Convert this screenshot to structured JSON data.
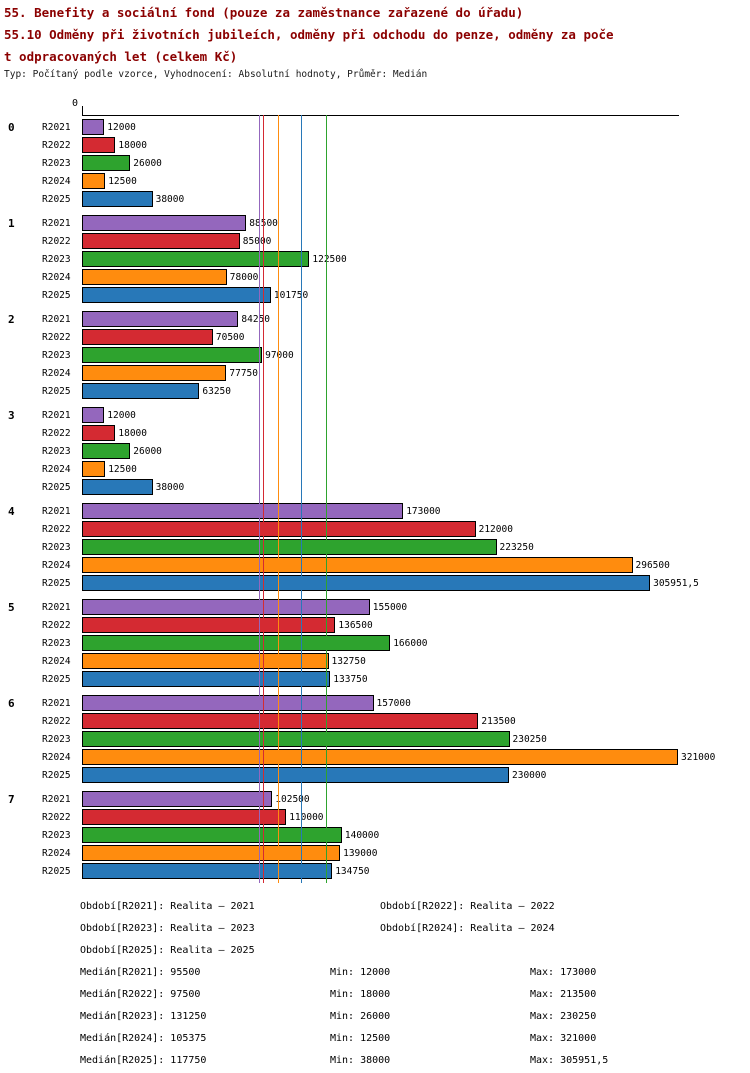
{
  "title_line1": "55. Benefity a sociální fond (pouze za zaměstnance zařazené do úřadu)",
  "title_line2": "55.10 Odměny při životních jubileích, odměny při odchodu do penze, odměny za poče",
  "title_line3": "t odpracovaných let (celkem Kč)",
  "subtitle": "Typ: Počítaný podle vzorce, Vyhodnocení: Absolutní hodnoty, Průměr: Medián",
  "chart_data": {
    "type": "bar",
    "orientation": "horizontal",
    "xlim": [
      0,
      321000
    ],
    "axis_origin_label": "0",
    "grid": false,
    "series": [
      {
        "name": "R2021",
        "color": "#9467BD",
        "median": 95500
      },
      {
        "name": "R2022",
        "color": "#D42A32",
        "median": 97500
      },
      {
        "name": "R2023",
        "color": "#2EA32E",
        "median": 131250
      },
      {
        "name": "R2024",
        "color": "#FF8C0E",
        "median": 105375
      },
      {
        "name": "R2025",
        "color": "#2878B8",
        "median": 117750
      }
    ],
    "groups": [
      {
        "label": "0",
        "values": [
          12000,
          18000,
          26000,
          12500,
          38000
        ],
        "value_labels": [
          "12000",
          "18000",
          "26000",
          "12500",
          "38000"
        ]
      },
      {
        "label": "1",
        "values": [
          88500,
          85000,
          122500,
          78000,
          101750
        ],
        "value_labels": [
          "88500",
          "85000",
          "122500",
          "78000",
          "101750"
        ]
      },
      {
        "label": "2",
        "values": [
          84250,
          70500,
          97000,
          77750,
          63250
        ],
        "value_labels": [
          "84250",
          "70500",
          "97000",
          "77750",
          "63250"
        ]
      },
      {
        "label": "3",
        "values": [
          12000,
          18000,
          26000,
          12500,
          38000
        ],
        "value_labels": [
          "12000",
          "18000",
          "26000",
          "12500",
          "38000"
        ]
      },
      {
        "label": "4",
        "values": [
          173000,
          212000,
          223250,
          296500,
          305951.5
        ],
        "value_labels": [
          "173000",
          "212000",
          "223250",
          "296500",
          "305951,5"
        ]
      },
      {
        "label": "5",
        "values": [
          155000,
          136500,
          166000,
          132750,
          133750
        ],
        "value_labels": [
          "155000",
          "136500",
          "166000",
          "132750",
          "133750"
        ]
      },
      {
        "label": "6",
        "values": [
          157000,
          213500,
          230250,
          321000,
          230000
        ],
        "value_labels": [
          "157000",
          "213500",
          "230250",
          "321000",
          "230000"
        ]
      },
      {
        "label": "7",
        "values": [
          102500,
          110000,
          140000,
          139000,
          134750
        ],
        "value_labels": [
          "102500",
          "110000",
          "140000",
          "139000",
          "134750"
        ]
      }
    ]
  },
  "legend": {
    "period_rows": [
      [
        "Období[R2021]: Realita – 2021",
        "Období[R2022]: Realita – 2022"
      ],
      [
        "Období[R2023]: Realita – 2023",
        "Období[R2024]: Realita – 2024"
      ],
      [
        "Období[R2025]: Realita – 2025"
      ]
    ],
    "stat_rows": [
      [
        "Medián[R2021]: 95500",
        "Min: 12000",
        "Max: 173000"
      ],
      [
        "Medián[R2022]: 97500",
        "Min: 18000",
        "Max: 213500"
      ],
      [
        "Medián[R2023]: 131250",
        "Min: 26000",
        "Max: 230250"
      ],
      [
        "Medián[R2024]: 105375",
        "Min: 12500",
        "Max: 321000"
      ],
      [
        "Medián[R2025]: 117750",
        "Min: 38000",
        "Max: 305951,5"
      ]
    ]
  }
}
